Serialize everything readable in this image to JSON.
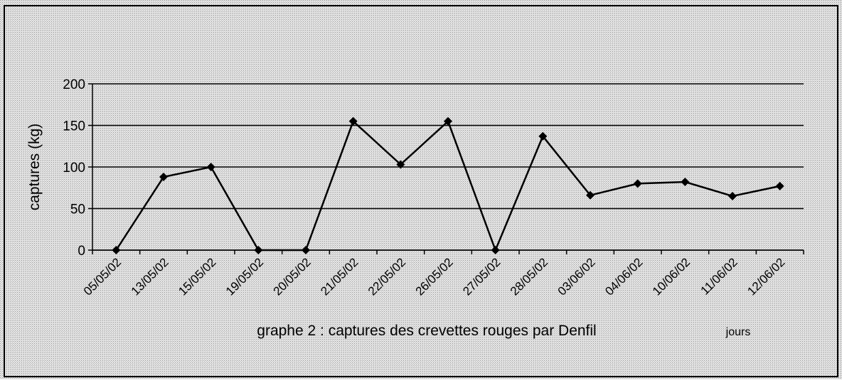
{
  "chart_data": {
    "type": "line",
    "title": "graphe 2 : captures des crevettes rouges  par Denfil",
    "y_label": "captures (kg)",
    "x_label": "jours",
    "categories": [
      "05/05/02",
      "13/05/02",
      "15/05/02",
      "19/05/02",
      "20/05/02",
      "21/05/02",
      "22/05/02",
      "26/05/02",
      "27/05/02",
      "28/05/02",
      "03/06/02",
      "04/06/02",
      "10/06/02",
      "11/06/02",
      "12/06/02"
    ],
    "values": [
      0,
      88,
      100,
      0,
      0,
      155,
      103,
      155,
      0,
      137,
      66,
      80,
      82,
      65,
      77
    ],
    "color": "#000000",
    "ylim": [
      0,
      200
    ],
    "yticks": [
      0,
      50,
      100,
      150,
      200
    ],
    "grid": true
  }
}
